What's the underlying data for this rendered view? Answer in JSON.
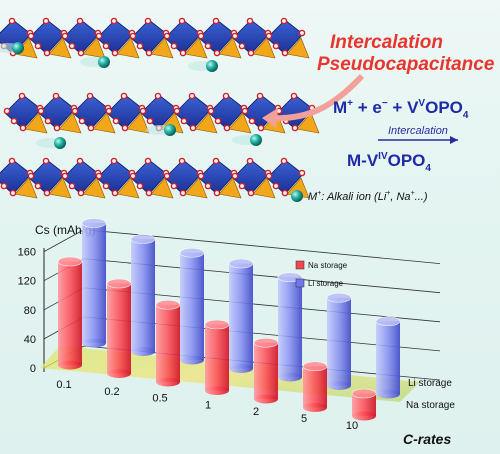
{
  "header": {
    "mechanism_line1": "Intercalation",
    "mechanism_line2": "Pseudocapacitance",
    "reaction_left": "M",
    "reaction_plus": "+",
    "reaction_mid": " + e",
    "reaction_minus": "−",
    "reaction_mid2": " + V",
    "reaction_v": "V",
    "reaction_opo": "OPO",
    "reaction_sub": "4",
    "arrow_label": "Intercalation",
    "product_a": "M-V",
    "product_iv": "IV",
    "product_opo": "OPO",
    "product_sub": "4",
    "legend_ion": "M",
    "legend_ion_sup": "+",
    "legend_ion_text": ": Alkali ion (Li",
    "legend_ion_text2": ", Na",
    "legend_ion_text3": "...)"
  },
  "colors": {
    "na": "#f0474f",
    "li": "#6f78e8",
    "title_red": "#e8362f",
    "title_blue": "#1f2aa6",
    "ion": "#1aa59c"
  },
  "chart_data": {
    "type": "bar",
    "ylabel": "Cs (mAh/g)",
    "xlabel": "C-rates",
    "ylim": [
      0,
      160
    ],
    "yticks": [
      0,
      40,
      80,
      120,
      160
    ],
    "categories": [
      "0.1",
      "0.2",
      "0.5",
      "1",
      "2",
      "5",
      "10"
    ],
    "series": [
      {
        "name": "Na storage",
        "values": [
          138,
          120,
          103,
          88,
          75,
          55,
          30
        ]
      },
      {
        "name": "Li storage",
        "values": [
          160,
          150,
          143,
          140,
          133,
          117,
          97
        ]
      }
    ],
    "legend": [
      "Na storage",
      "Li storage"
    ],
    "depth_labels": [
      "Li storage",
      "Na storage"
    ]
  }
}
